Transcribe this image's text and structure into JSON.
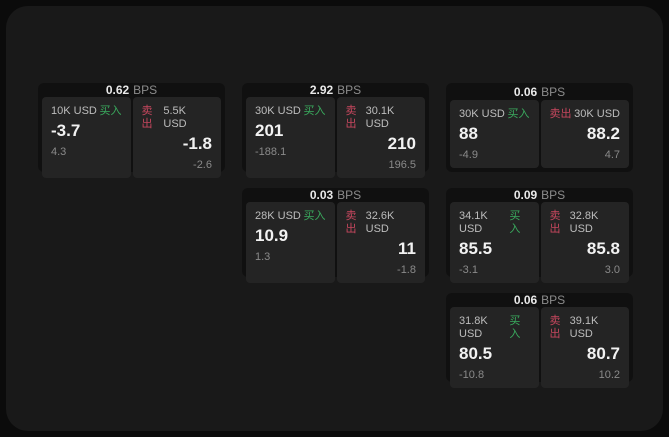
{
  "labels": {
    "bps": "BPS",
    "buy": "买入",
    "sell": "卖出"
  },
  "colors": {
    "page_bg": "#0b0b0b",
    "panel_bg": "#191919",
    "card_bg": "#101010",
    "tile_bg": "#242424",
    "buy_green": "#3aab5e",
    "sell_red": "#c7475e",
    "price_white": "#f2f2f2",
    "label_gray": "#bdbdbd",
    "delta_gray": "#8a8a8a"
  },
  "cards": [
    {
      "bps_value": "0.62",
      "buy": {
        "amount": "10K USD",
        "price": "-3.7",
        "delta": "4.3"
      },
      "sell": {
        "amount": "5.5K USD",
        "price": "-1.8",
        "delta": "-2.6"
      }
    },
    {
      "bps_value": "2.92",
      "buy": {
        "amount": "30K USD",
        "price": "201",
        "delta": "-188.1"
      },
      "sell": {
        "amount": "30.1K USD",
        "price": "210",
        "delta": "196.5"
      }
    },
    {
      "bps_value": "0.06",
      "buy": {
        "amount": "30K USD",
        "price": "88",
        "delta": "-4.9"
      },
      "sell": {
        "amount": "30K USD",
        "price": "88.2",
        "delta": "4.7"
      }
    },
    {
      "bps_value": "0.03",
      "buy": {
        "amount": "28K USD",
        "price": "10.9",
        "delta": "1.3"
      },
      "sell": {
        "amount": "32.6K USD",
        "price": "11",
        "delta": "-1.8"
      }
    },
    {
      "bps_value": "0.09",
      "buy": {
        "amount": "34.1K USD",
        "price": "85.5",
        "delta": "-3.1"
      },
      "sell": {
        "amount": "32.8K USD",
        "price": "85.8",
        "delta": "3.0"
      }
    },
    {
      "bps_value": "0.06",
      "buy": {
        "amount": "31.8K USD",
        "price": "80.5",
        "delta": "-10.8"
      },
      "sell": {
        "amount": "39.1K USD",
        "price": "80.7",
        "delta": "10.2"
      }
    }
  ]
}
